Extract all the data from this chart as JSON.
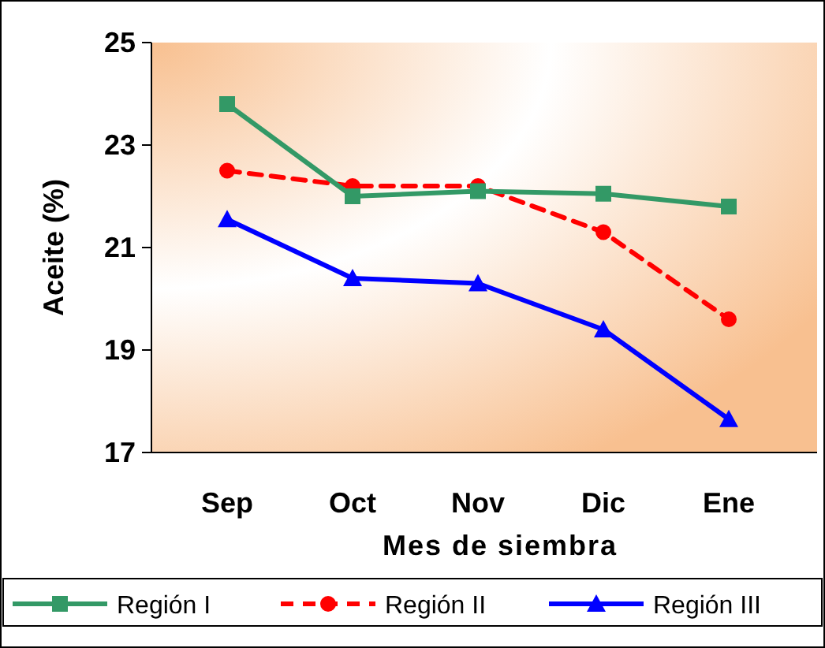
{
  "chart_data": {
    "type": "line",
    "xlabel": "Mes de siembra",
    "ylabel": "Aceite (%)",
    "categories": [
      "Sep",
      "Oct",
      "Nov",
      "Dic",
      "Ene"
    ],
    "ylim": [
      17,
      25
    ],
    "yticks": [
      17,
      19,
      21,
      23,
      25
    ],
    "grid": false,
    "legend": "bottom",
    "series": [
      {
        "name": "Región I",
        "color": "#339966",
        "values": [
          23.8,
          22.0,
          22.1,
          22.05,
          21.8
        ],
        "marker": "square",
        "line_style": "solid"
      },
      {
        "name": "Región II",
        "color": "#ff0000",
        "values": [
          22.5,
          22.2,
          22.2,
          21.3,
          19.6
        ],
        "marker": "circle",
        "line_style": "dashed"
      },
      {
        "name": "Región III",
        "color": "#0000ff",
        "values": [
          21.55,
          20.4,
          20.3,
          19.4,
          17.65
        ],
        "marker": "triangle",
        "line_style": "solid"
      }
    ]
  }
}
